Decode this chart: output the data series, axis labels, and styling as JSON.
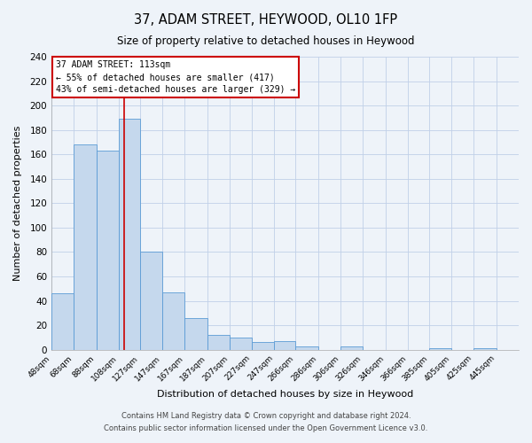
{
  "title": "37, ADAM STREET, HEYWOOD, OL10 1FP",
  "subtitle": "Size of property relative to detached houses in Heywood",
  "xlabel": "Distribution of detached houses by size in Heywood",
  "ylabel": "Number of detached properties",
  "footer_line1": "Contains HM Land Registry data © Crown copyright and database right 2024.",
  "footer_line2": "Contains public sector information licensed under the Open Government Licence v3.0.",
  "bar_left_edges": [
    48,
    68,
    88,
    108,
    127,
    147,
    167,
    187,
    207,
    227,
    247,
    266,
    286,
    306,
    326,
    346,
    366,
    385,
    405,
    425
  ],
  "bar_heights": [
    46,
    168,
    163,
    189,
    80,
    47,
    26,
    12,
    10,
    6,
    7,
    3,
    0,
    3,
    0,
    0,
    0,
    1,
    0,
    1
  ],
  "bar_widths": [
    20,
    20,
    20,
    19,
    20,
    20,
    20,
    20,
    20,
    20,
    19,
    20,
    20,
    20,
    20,
    20,
    19,
    20,
    20,
    20
  ],
  "tick_labels": [
    "48sqm",
    "68sqm",
    "88sqm",
    "108sqm",
    "127sqm",
    "147sqm",
    "167sqm",
    "187sqm",
    "207sqm",
    "227sqm",
    "247sqm",
    "266sqm",
    "286sqm",
    "306sqm",
    "326sqm",
    "346sqm",
    "366sqm",
    "385sqm",
    "405sqm",
    "425sqm",
    "445sqm"
  ],
  "bar_color": "#c5d8ed",
  "bar_edge_color": "#5b9bd5",
  "grid_color": "#c0d0e8",
  "background_color": "#eef3f9",
  "vline_x": 113,
  "vline_color": "#cc0000",
  "annotation_title": "37 ADAM STREET: 113sqm",
  "annotation_line1": "← 55% of detached houses are smaller (417)",
  "annotation_line2": "43% of semi-detached houses are larger (329) →",
  "annotation_box_color": "#ffffff",
  "annotation_box_edge_color": "#cc0000",
  "ylim": [
    0,
    240
  ],
  "xlim_min": 48,
  "xlim_max": 465,
  "yticks": [
    0,
    20,
    40,
    60,
    80,
    100,
    120,
    140,
    160,
    180,
    200,
    220,
    240
  ]
}
